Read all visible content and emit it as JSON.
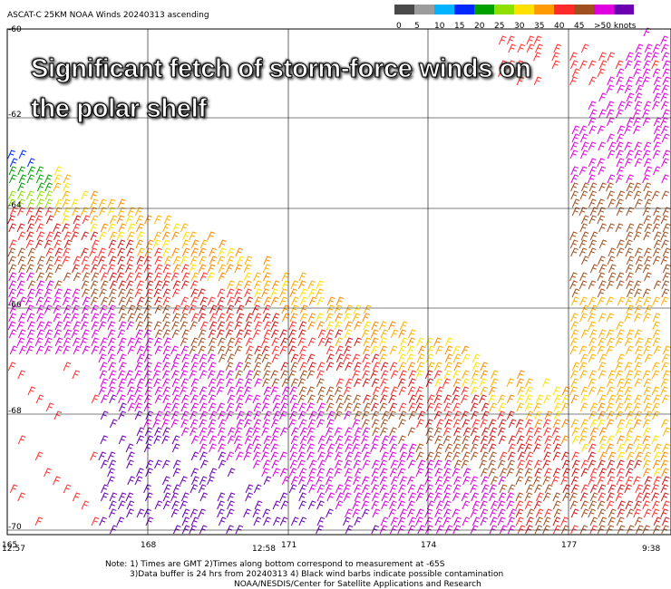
{
  "header": {
    "title": "ASCAT-C 25KM NOAA Winds 20240313 ascending"
  },
  "legend": {
    "labels": [
      "0",
      "5",
      "10",
      "15",
      "20",
      "25",
      "30",
      "35",
      "40",
      "45",
      ">50 knots"
    ],
    "colors": [
      "#4a4a4a",
      "#9c9c9c",
      "#00b4ff",
      "#0028ff",
      "#00a000",
      "#8ee000",
      "#ffe000",
      "#ff9a00",
      "#ff2a2a",
      "#a05020",
      "#e000e0",
      "#6a00b0"
    ]
  },
  "annotation": [
    "Significant fetch of storm-force winds on",
    "the polar shelf"
  ],
  "latitude_labels": [
    "-60",
    "-62",
    "-64",
    "-66",
    "-68",
    "-70"
  ],
  "longitude_labels": [
    "165",
    "168",
    "171",
    "174",
    "177"
  ],
  "time_labels": [
    "12:57",
    "12:58",
    "9:38"
  ],
  "notes": [
    "Note: 1) Times are GMT 2)Times along bottom correspond to measurement at -65S",
    "3)Data buffer is 24 hrs from 20240313 4) Black wind barbs indicate possible contamination",
    "NOAA/NESDIS/Center for Satellite Applications and Research"
  ]
}
